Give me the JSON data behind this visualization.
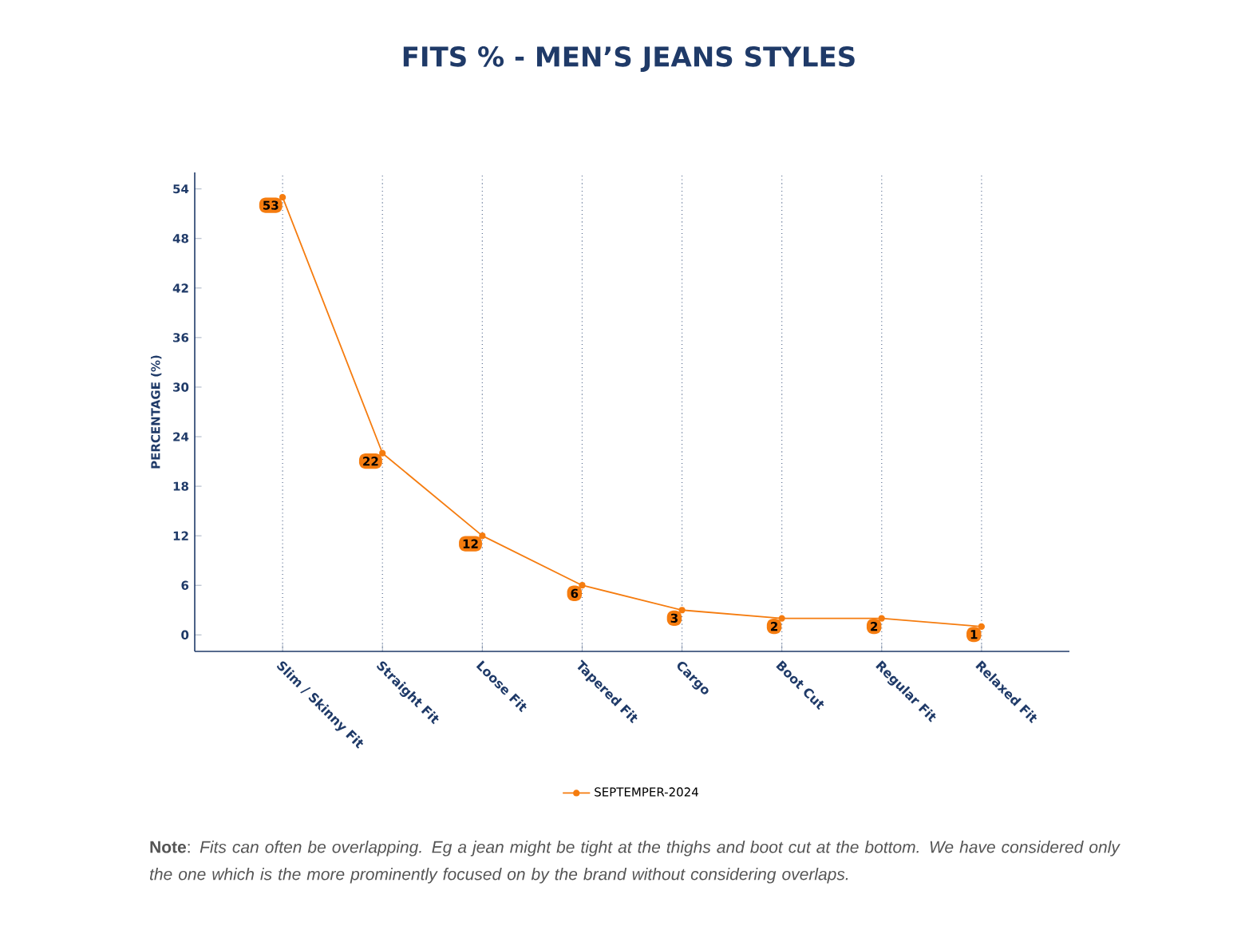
{
  "chart_data": {
    "type": "line",
    "title": "FITS % - MEN’S JEANS STYLES",
    "ylabel": "PERCENTAGE (%)",
    "categories": [
      "Slim / Skinny Fit",
      "Straight Fit",
      "Loose Fit",
      "Tapered Fit",
      "Cargo",
      "Boot Cut",
      "Regular Fit",
      "Relaxed Fit"
    ],
    "series": [
      {
        "name": "SEPTEMPER-2024",
        "color": "#f57c0f",
        "values": [
          53,
          22,
          12,
          6,
          3,
          2,
          2,
          1
        ]
      }
    ],
    "ylim": [
      -2,
      56
    ],
    "yticks": [
      0,
      6,
      12,
      18,
      24,
      30,
      36,
      42,
      48,
      54
    ],
    "grid": "x",
    "legend": "bottom",
    "marker": "circle",
    "line_style": "solid",
    "data_labels": true,
    "annotations": [
      "**Note**: *Fits can often be overlapping. Eg a jean might be tight at the thighs and boot cut at the bottom. We have considered only the one which is the more prominently focused on by the brand without considering overlaps.*"
    ]
  }
}
